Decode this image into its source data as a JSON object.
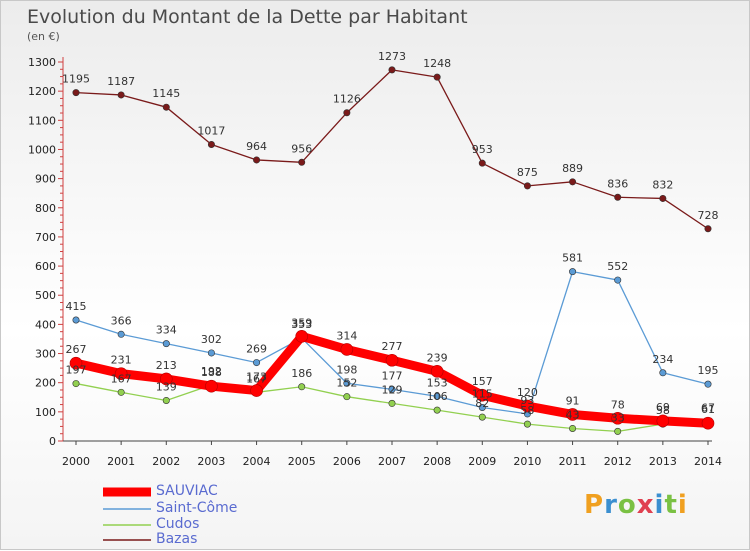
{
  "title": "Evolution du Montant de la Dette par Habitant",
  "unit": "(en €)",
  "logo": [
    "P",
    "r",
    "o",
    "x",
    "i",
    "t",
    "i"
  ],
  "chart_data": {
    "type": "line",
    "x": [
      "2000",
      "2001",
      "2002",
      "2003",
      "2004",
      "2005",
      "2006",
      "2007",
      "2008",
      "2009",
      "2010",
      "2011",
      "2012",
      "2013",
      "2014"
    ],
    "ylim": [
      0,
      1300
    ],
    "yticks": [
      0,
      100,
      200,
      300,
      400,
      500,
      600,
      700,
      800,
      900,
      1000,
      1100,
      1200,
      1300
    ],
    "grid": false,
    "legend_position": "bottom-left",
    "series": [
      {
        "name": "Bazas",
        "color": "#7a1a1a",
        "values": [
          1195,
          1187,
          1145,
          1017,
          964,
          956,
          1126,
          1273,
          1248,
          953,
          875,
          889,
          836,
          832,
          728
        ],
        "labels": [
          "1195",
          "1187",
          "1145",
          "1017",
          "964",
          "956",
          "1126",
          "1273",
          "1248",
          "953",
          "875",
          "889",
          "836",
          "832",
          "728"
        ]
      },
      {
        "name": "Saint-Côme",
        "color": "#5b9bd5",
        "values": [
          415,
          366,
          334,
          302,
          269,
          353,
          198,
          177,
          153,
          115,
          93,
          581,
          552,
          234,
          195
        ],
        "labels": [
          "415",
          "366",
          "334",
          "302",
          "269",
          "353",
          "198",
          "177",
          "153",
          "115",
          "93",
          "581",
          "552",
          "234",
          "195"
        ]
      },
      {
        "name": "Cudos",
        "color": "#92d050",
        "values": [
          197,
          167,
          139,
          192,
          167,
          186,
          152,
          129,
          106,
          82,
          58,
          43,
          33,
          58,
          67
        ],
        "labels": [
          "197",
          "167",
          "139",
          "192",
          "167",
          "186",
          "152",
          "129",
          "106",
          "82",
          "58",
          "43",
          "33",
          "58",
          "67"
        ]
      },
      {
        "name": "SAUVIAC",
        "color": "#ff0000",
        "values": [
          267,
          231,
          213,
          188,
          173,
          359,
          314,
          277,
          239,
          157,
          120,
          91,
          78,
          69,
          61
        ],
        "labels": [
          "267",
          "231",
          "213",
          "188",
          "173",
          "359",
          "314",
          "277",
          "239",
          "157",
          "120",
          "91",
          "78",
          "69",
          "61"
        ]
      }
    ],
    "legend": [
      "SAUVIAC",
      "Saint-Côme",
      "Cudos",
      "Bazas"
    ]
  }
}
